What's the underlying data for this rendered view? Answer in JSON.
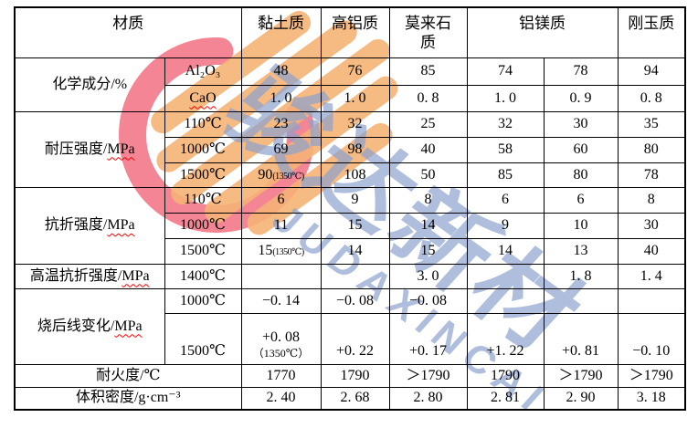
{
  "watermark": {
    "cn": "骏达新材",
    "en": "JUDAXINCAI",
    "blue": "#8ca2cd",
    "red": "#ee5f74",
    "orange": "#f3a55e"
  },
  "table": {
    "header": [
      {
        "label": "材质",
        "colspan": 2
      },
      {
        "label": "黏土质"
      },
      {
        "label": "高铝质"
      },
      {
        "label": "莫来石质"
      },
      {
        "label": "铝镁质",
        "colspan": 2
      },
      {
        "label": "刚玉质"
      }
    ],
    "rows": [
      {
        "cells": [
          {
            "t": "化学成分/%",
            "rowspan": 2,
            "cls": "label"
          },
          {
            "t": "Al₂O₃",
            "cls": "sub"
          },
          {
            "t": "48"
          },
          {
            "t": "76"
          },
          {
            "t": "85"
          },
          {
            "t": "74"
          },
          {
            "t": "78"
          },
          {
            "t": "94"
          }
        ]
      },
      {
        "cells": [
          {
            "t": "CaO",
            "cls": "sub",
            "wavyAll": true
          },
          {
            "t": "1. 0"
          },
          {
            "t": "1. 0"
          },
          {
            "t": "0. 8"
          },
          {
            "t": "1. 0"
          },
          {
            "t": "0. 9"
          },
          {
            "t": "0. 8"
          }
        ]
      },
      {
        "cells": [
          {
            "pre": "耐压强度/",
            "wavy": "MPa",
            "rowspan": 3,
            "cls": "label"
          },
          {
            "t": "110℃",
            "cls": "sub"
          },
          {
            "t": "23"
          },
          {
            "t": "32"
          },
          {
            "t": "25"
          },
          {
            "t": "32"
          },
          {
            "t": "30"
          },
          {
            "t": "35"
          }
        ]
      },
      {
        "cells": [
          {
            "t": "1000℃",
            "cls": "sub"
          },
          {
            "t": "69"
          },
          {
            "t": "98"
          },
          {
            "t": "40"
          },
          {
            "t": "58"
          },
          {
            "t": "60"
          },
          {
            "t": "80"
          }
        ]
      },
      {
        "cells": [
          {
            "t": "1500℃",
            "cls": "sub"
          },
          {
            "main": "90",
            "note": "(1350℃)"
          },
          {
            "t": "108"
          },
          {
            "t": "50"
          },
          {
            "t": "85"
          },
          {
            "t": "80"
          },
          {
            "t": "78"
          }
        ]
      },
      {
        "cells": [
          {
            "pre": "抗折强度/",
            "wavy": "MPa",
            "rowspan": 3,
            "cls": "label"
          },
          {
            "t": "110℃",
            "cls": "sub"
          },
          {
            "t": "6"
          },
          {
            "t": "9"
          },
          {
            "t": "8"
          },
          {
            "t": "6"
          },
          {
            "t": "6"
          },
          {
            "t": "8"
          }
        ]
      },
      {
        "cells": [
          {
            "t": "1000℃",
            "cls": "sub"
          },
          {
            "t": "11"
          },
          {
            "t": "15"
          },
          {
            "t": "14"
          },
          {
            "t": "9"
          },
          {
            "t": "10"
          },
          {
            "t": "30"
          }
        ]
      },
      {
        "cells": [
          {
            "t": "1500℃",
            "cls": "sub"
          },
          {
            "main": "15",
            "note": "(1350℃)"
          },
          {
            "t": "14"
          },
          {
            "t": "15"
          },
          {
            "t": "14"
          },
          {
            "t": "13"
          },
          {
            "t": "40"
          }
        ]
      },
      {
        "cells": [
          {
            "pre": "高温抗折强度/",
            "wavy": "MPa",
            "cls": "label"
          },
          {
            "t": "1400℃",
            "cls": "sub"
          },
          {
            "t": ""
          },
          {
            "t": ""
          },
          {
            "t": "3. 0"
          },
          {
            "t": ""
          },
          {
            "t": "1. 8"
          },
          {
            "t": "1. 4"
          }
        ]
      },
      {
        "cells": [
          {
            "pre": "烧后线变化/",
            "wavy": "MPa",
            "rowspan": 2,
            "cls": "label"
          },
          {
            "t": "1000℃",
            "cls": "sub"
          },
          {
            "t": "−0. 14"
          },
          {
            "t": "−0. 08"
          },
          {
            "t": "−0. 08"
          },
          {
            "t": ""
          },
          {
            "t": ""
          },
          {
            "t": ""
          }
        ]
      },
      {
        "cells": [
          {
            "t": "1500℃",
            "cls": "sub"
          },
          {
            "lines": [
              "+0. 08",
              "（1350℃）"
            ]
          },
          {
            "t": "+0. 22"
          },
          {
            "t": "+0. 17"
          },
          {
            "t": "+1. 22"
          },
          {
            "t": "+0. 81"
          },
          {
            "t": "−0. 10"
          }
        ]
      },
      {
        "cells": [
          {
            "t": "耐火度/℃",
            "colspan": 2,
            "cls": "label"
          },
          {
            "t": "1770"
          },
          {
            "t": "1790"
          },
          {
            "t": "＞1790"
          },
          {
            "t": "1790"
          },
          {
            "t": "＞1790"
          },
          {
            "t": "＞1790"
          }
        ]
      },
      {
        "cells": [
          {
            "t": "体积密度/g·cm⁻³",
            "colspan": 2,
            "cls": "label"
          },
          {
            "t": "2. 40"
          },
          {
            "t": "2. 68"
          },
          {
            "t": "2. 80"
          },
          {
            "t": "2. 81"
          },
          {
            "t": "2. 90"
          },
          {
            "t": "3. 18"
          }
        ]
      }
    ]
  }
}
